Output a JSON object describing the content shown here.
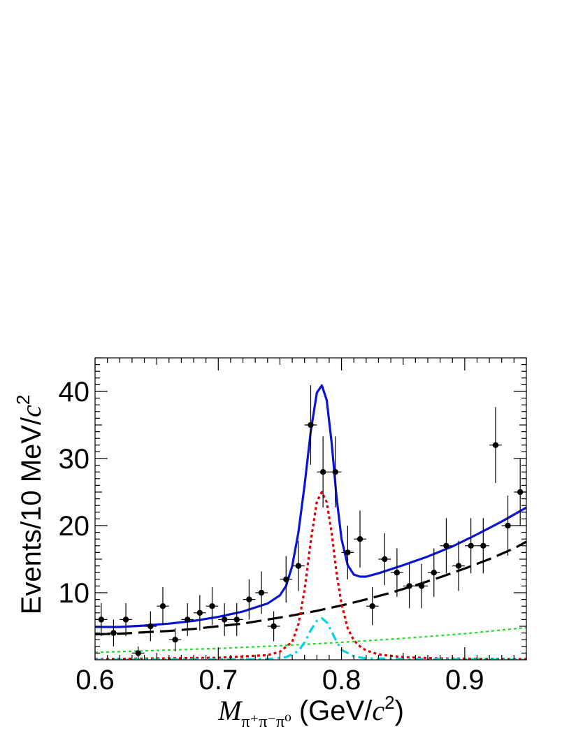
{
  "chart_data": {
    "type": "scatter",
    "title": "",
    "xlabel": {
      "var": "M",
      "subscript": "π⁺π⁻π⁰",
      "unit_open": " (GeV/",
      "unit_c": "c",
      "unit_sup": "2",
      "unit_close": ")"
    },
    "ylabel": {
      "prefix": "Events/10 MeV/",
      "c": "c",
      "sup": "2"
    },
    "xlim": [
      0.6,
      0.95
    ],
    "ylim": [
      0,
      45
    ],
    "x_ticks": [
      0.6,
      0.7,
      0.8,
      0.9
    ],
    "x_tick_labels": [
      "0.6",
      "0.7",
      "0.8",
      "0.9"
    ],
    "y_ticks": [
      10,
      20,
      30,
      40
    ],
    "y_tick_labels": [
      "10",
      "20",
      "30",
      "40"
    ],
    "grid": false,
    "legend": "none",
    "bin_width": 0.01,
    "data_points": {
      "x": [
        0.605,
        0.615,
        0.625,
        0.635,
        0.645,
        0.655,
        0.665,
        0.675,
        0.685,
        0.695,
        0.705,
        0.715,
        0.725,
        0.735,
        0.745,
        0.755,
        0.765,
        0.775,
        0.785,
        0.795,
        0.805,
        0.815,
        0.825,
        0.835,
        0.845,
        0.855,
        0.865,
        0.875,
        0.885,
        0.895,
        0.905,
        0.915,
        0.925,
        0.935,
        0.945
      ],
      "y": [
        6,
        4,
        6,
        1,
        5,
        8,
        3,
        6,
        7,
        8,
        6,
        6,
        9,
        10,
        5,
        12,
        14,
        35,
        28,
        28,
        16,
        18,
        8,
        15,
        13,
        11,
        11,
        13,
        17,
        14,
        17,
        17,
        32,
        20,
        25
      ],
      "color": "#000000"
    },
    "series": [
      {
        "style": "solid",
        "color": "#0a14d6",
        "x": [
          0.6,
          0.62,
          0.64,
          0.66,
          0.68,
          0.7,
          0.72,
          0.74,
          0.75,
          0.755,
          0.76,
          0.765,
          0.77,
          0.775,
          0.78,
          0.784,
          0.788,
          0.792,
          0.796,
          0.8,
          0.805,
          0.81,
          0.815,
          0.82,
          0.83,
          0.85,
          0.87,
          0.89,
          0.91,
          0.93,
          0.95
        ],
        "y": [
          4.9,
          4.9,
          5.1,
          5.4,
          5.8,
          6.4,
          7.2,
          8.4,
          9.6,
          11.0,
          14.0,
          19.0,
          26.0,
          34.0,
          39.8,
          40.9,
          38.7,
          32.3,
          24.2,
          18.0,
          14.1,
          12.7,
          12.4,
          12.4,
          12.9,
          14.1,
          15.4,
          16.9,
          18.7,
          20.6,
          22.7
        ]
      },
      {
        "style": "dashed",
        "color": "#000000",
        "x": [
          0.6,
          0.62,
          0.64,
          0.66,
          0.68,
          0.7,
          0.72,
          0.74,
          0.76,
          0.78,
          0.8,
          0.82,
          0.84,
          0.86,
          0.88,
          0.9,
          0.92,
          0.94,
          0.95
        ],
        "y": [
          3.8,
          3.9,
          4.1,
          4.3,
          4.6,
          5.0,
          5.4,
          6.0,
          6.6,
          7.3,
          8.1,
          9.0,
          10.0,
          11.1,
          12.3,
          13.6,
          15.0,
          16.6,
          17.6
        ]
      },
      {
        "style": "dotted",
        "color": "#e00000",
        "x": [
          0.6,
          0.7,
          0.74,
          0.75,
          0.76,
          0.765,
          0.77,
          0.775,
          0.78,
          0.784,
          0.788,
          0.792,
          0.796,
          0.8,
          0.805,
          0.81,
          0.815,
          0.82,
          0.83,
          0.85,
          0.88,
          0.95
        ],
        "y": [
          0.1,
          0.3,
          0.7,
          1.2,
          2.7,
          5.3,
          10.4,
          17.6,
          23.6,
          25.0,
          23.5,
          18.9,
          12.9,
          8.3,
          4.7,
          2.9,
          2.0,
          1.4,
          0.8,
          0.4,
          0.2,
          0.1
        ]
      },
      {
        "style": "dotted",
        "color": "#22dd22",
        "x": [
          0.6,
          0.65,
          0.7,
          0.75,
          0.8,
          0.85,
          0.9,
          0.95
        ],
        "y": [
          1.1,
          1.4,
          1.7,
          2.1,
          2.6,
          3.2,
          3.9,
          4.8
        ]
      },
      {
        "style": "dashdot",
        "color": "#00d4e0",
        "x": [
          0.6,
          0.74,
          0.755,
          0.765,
          0.77,
          0.775,
          0.78,
          0.784,
          0.788,
          0.792,
          0.796,
          0.8,
          0.81,
          0.82,
          0.95
        ],
        "y": [
          0.0,
          0.1,
          0.4,
          1.3,
          2.6,
          4.4,
          5.8,
          6.2,
          5.6,
          4.2,
          2.7,
          1.5,
          0.5,
          0.2,
          0.0
        ]
      }
    ]
  }
}
